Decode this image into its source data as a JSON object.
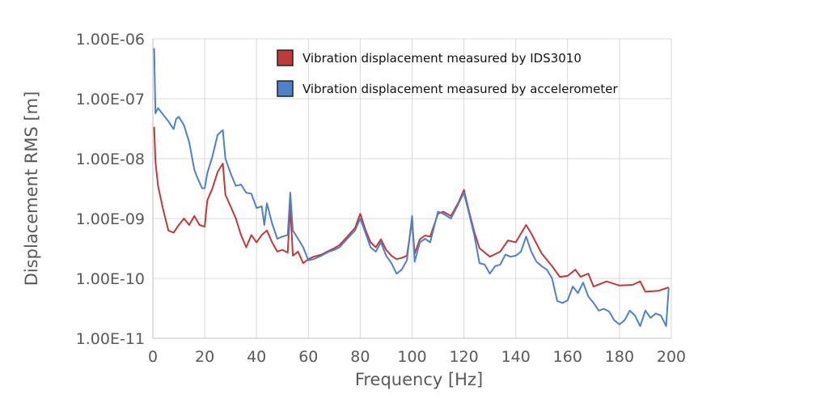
{
  "chart_data": {
    "type": "line",
    "title": "",
    "xlabel": "Frequency [Hz]",
    "ylabel": "Displacement RMS  [m]",
    "xlim": [
      0,
      200
    ],
    "ylim": [
      1e-11,
      1e-06
    ],
    "yscale": "log",
    "grid": true,
    "legend_position": "top-center",
    "x_ticks": [
      0,
      20,
      40,
      60,
      80,
      100,
      120,
      140,
      160,
      180,
      200
    ],
    "x_tick_labels": [
      "0",
      "20",
      "40",
      "60",
      "80",
      "100",
      "120",
      "140",
      "160",
      "180",
      "200"
    ],
    "y_ticks": [
      1e-06,
      1e-07,
      1e-08,
      1e-09,
      1e-10,
      1e-11
    ],
    "y_tick_labels": [
      "1.00E-06",
      "1.00E-07",
      "1.00E-08",
      "1.00E-09",
      "1.00E-10",
      "1.00E-11"
    ],
    "series": [
      {
        "name": "Vibration displacement measured by IDS3010",
        "color": "#c0393b",
        "x": [
          0.5,
          1,
          2,
          4,
          6,
          8,
          10,
          12,
          14,
          16,
          18,
          20,
          21,
          23,
          25,
          27,
          28,
          30,
          32,
          34,
          36,
          38,
          40,
          42,
          44,
          46,
          48,
          50,
          52,
          53,
          54,
          56,
          58,
          60,
          62,
          65,
          68,
          70,
          72,
          75,
          78,
          80,
          82,
          84,
          86,
          88,
          90,
          92,
          94,
          96,
          98,
          100,
          101,
          103,
          105,
          107,
          110,
          112,
          115,
          118,
          120,
          122,
          124,
          126,
          130,
          134,
          137,
          140,
          144,
          146,
          150,
          154,
          157,
          160,
          163,
          165,
          168,
          170,
          175,
          180,
          185,
          188,
          190,
          195,
          199
        ],
        "y": [
          3.4e-08,
          8.9e-09,
          3.5e-09,
          1.4e-09,
          6.3e-10,
          5.8e-10,
          7.8e-10,
          1e-09,
          7.8e-10,
          1.1e-09,
          7.8e-10,
          7.3e-10,
          2e-09,
          3.2e-09,
          6e-09,
          8.3e-09,
          2.5e-09,
          1.6e-09,
          1e-09,
          5.3e-10,
          3.3e-10,
          5.3e-10,
          4e-10,
          5.3e-10,
          6.3e-10,
          4e-10,
          2.8e-10,
          3e-10,
          2.7e-10,
          1.6e-09,
          2.4e-10,
          2.8e-10,
          1.8e-10,
          2.1e-10,
          2.3e-10,
          2.5e-10,
          2.9e-10,
          3.2e-10,
          3.6e-10,
          5e-10,
          7e-10,
          1.2e-09,
          6.5e-10,
          4e-10,
          3.3e-10,
          4.5e-10,
          3e-10,
          2.4e-10,
          2.1e-10,
          2.2e-10,
          2.4e-10,
          9e-10,
          2.6e-10,
          4.5e-10,
          5.2e-10,
          5e-10,
          1.2e-09,
          1.3e-09,
          1.1e-09,
          1.9e-09,
          3e-09,
          1.3e-09,
          6e-10,
          3.2e-10,
          2.3e-10,
          2.8e-10,
          4.3e-10,
          4e-10,
          7.8e-10,
          5.6e-10,
          2.6e-10,
          1.6e-10,
          1.06e-10,
          1.1e-10,
          1.4e-10,
          1.06e-10,
          1.2e-10,
          7.3e-11,
          8.9e-11,
          7.6e-11,
          7.8e-11,
          8.9e-11,
          6e-11,
          6.2e-11,
          7.1e-11
        ]
      },
      {
        "name": "Vibration  displacement measured by accelerometer",
        "color": "#4f81c7",
        "x": [
          0.5,
          1,
          2,
          4,
          6,
          8,
          9,
          10,
          12,
          14,
          16,
          17,
          19,
          20,
          21,
          23,
          25,
          27,
          28,
          30,
          32,
          34,
          36,
          38,
          40,
          42,
          43,
          44,
          46,
          48,
          50,
          52,
          53,
          54,
          56,
          58,
          60,
          62,
          65,
          68,
          70,
          72,
          75,
          78,
          80,
          82,
          84,
          86,
          88,
          90,
          92,
          94,
          96,
          98,
          100,
          101,
          103,
          105,
          107,
          110,
          112,
          115,
          118,
          120,
          122,
          124,
          126,
          128,
          130,
          132,
          134,
          136,
          138,
          140,
          142,
          144,
          146,
          148,
          150,
          152,
          154,
          156,
          158,
          160,
          162,
          164,
          166,
          168,
          170,
          172,
          174,
          176,
          178,
          180,
          182,
          184,
          186,
          188,
          190,
          192,
          194,
          196,
          198,
          199
        ],
        "y": [
          7e-07,
          5.7e-08,
          7e-08,
          5.4e-08,
          4.2e-08,
          3.1e-08,
          4.6e-08,
          5e-08,
          3.6e-08,
          1.9e-08,
          6.5e-09,
          5e-09,
          3.2e-09,
          3.2e-09,
          5.7e-09,
          1.1e-08,
          2.5e-08,
          3e-08,
          1e-08,
          5.7e-09,
          3.5e-09,
          3.7e-09,
          2.7e-09,
          2.6e-09,
          1.5e-09,
          1.6e-09,
          7.8e-10,
          1.8e-09,
          8.3e-10,
          4.6e-10,
          5e-10,
          5.3e-10,
          2.7e-09,
          6.3e-10,
          4.6e-10,
          3.3e-10,
          2e-10,
          2.1e-10,
          2.4e-10,
          2.8e-10,
          3e-10,
          3.3e-10,
          4.6e-10,
          6.3e-10,
          1e-09,
          5.8e-10,
          3.3e-10,
          2.8e-10,
          4e-10,
          2.4e-10,
          1.8e-10,
          1.2e-10,
          1.4e-10,
          2e-10,
          1.1e-09,
          1.9e-10,
          4e-10,
          4.6e-10,
          4e-10,
          1.3e-09,
          1.2e-09,
          1e-09,
          1.8e-09,
          2.7e-09,
          1.2e-09,
          5.3e-10,
          1.8e-10,
          1.7e-10,
          1.2e-10,
          1.6e-10,
          1.7e-10,
          2.5e-10,
          2.3e-10,
          2.4e-10,
          2.8e-10,
          5e-10,
          2.8e-10,
          1.9e-10,
          1.6e-10,
          1.4e-10,
          1e-10,
          4.2e-11,
          3.9e-11,
          4.3e-11,
          7.3e-11,
          5.7e-11,
          8.5e-11,
          5e-11,
          3.9e-11,
          2.9e-11,
          3.1e-11,
          2.8e-11,
          2e-11,
          1.7e-11,
          2e-11,
          2.9e-11,
          2.4e-11,
          1.6e-11,
          2.9e-11,
          2.2e-11,
          2.6e-11,
          2.4e-11,
          1.6e-11,
          7e-11
        ]
      }
    ]
  }
}
